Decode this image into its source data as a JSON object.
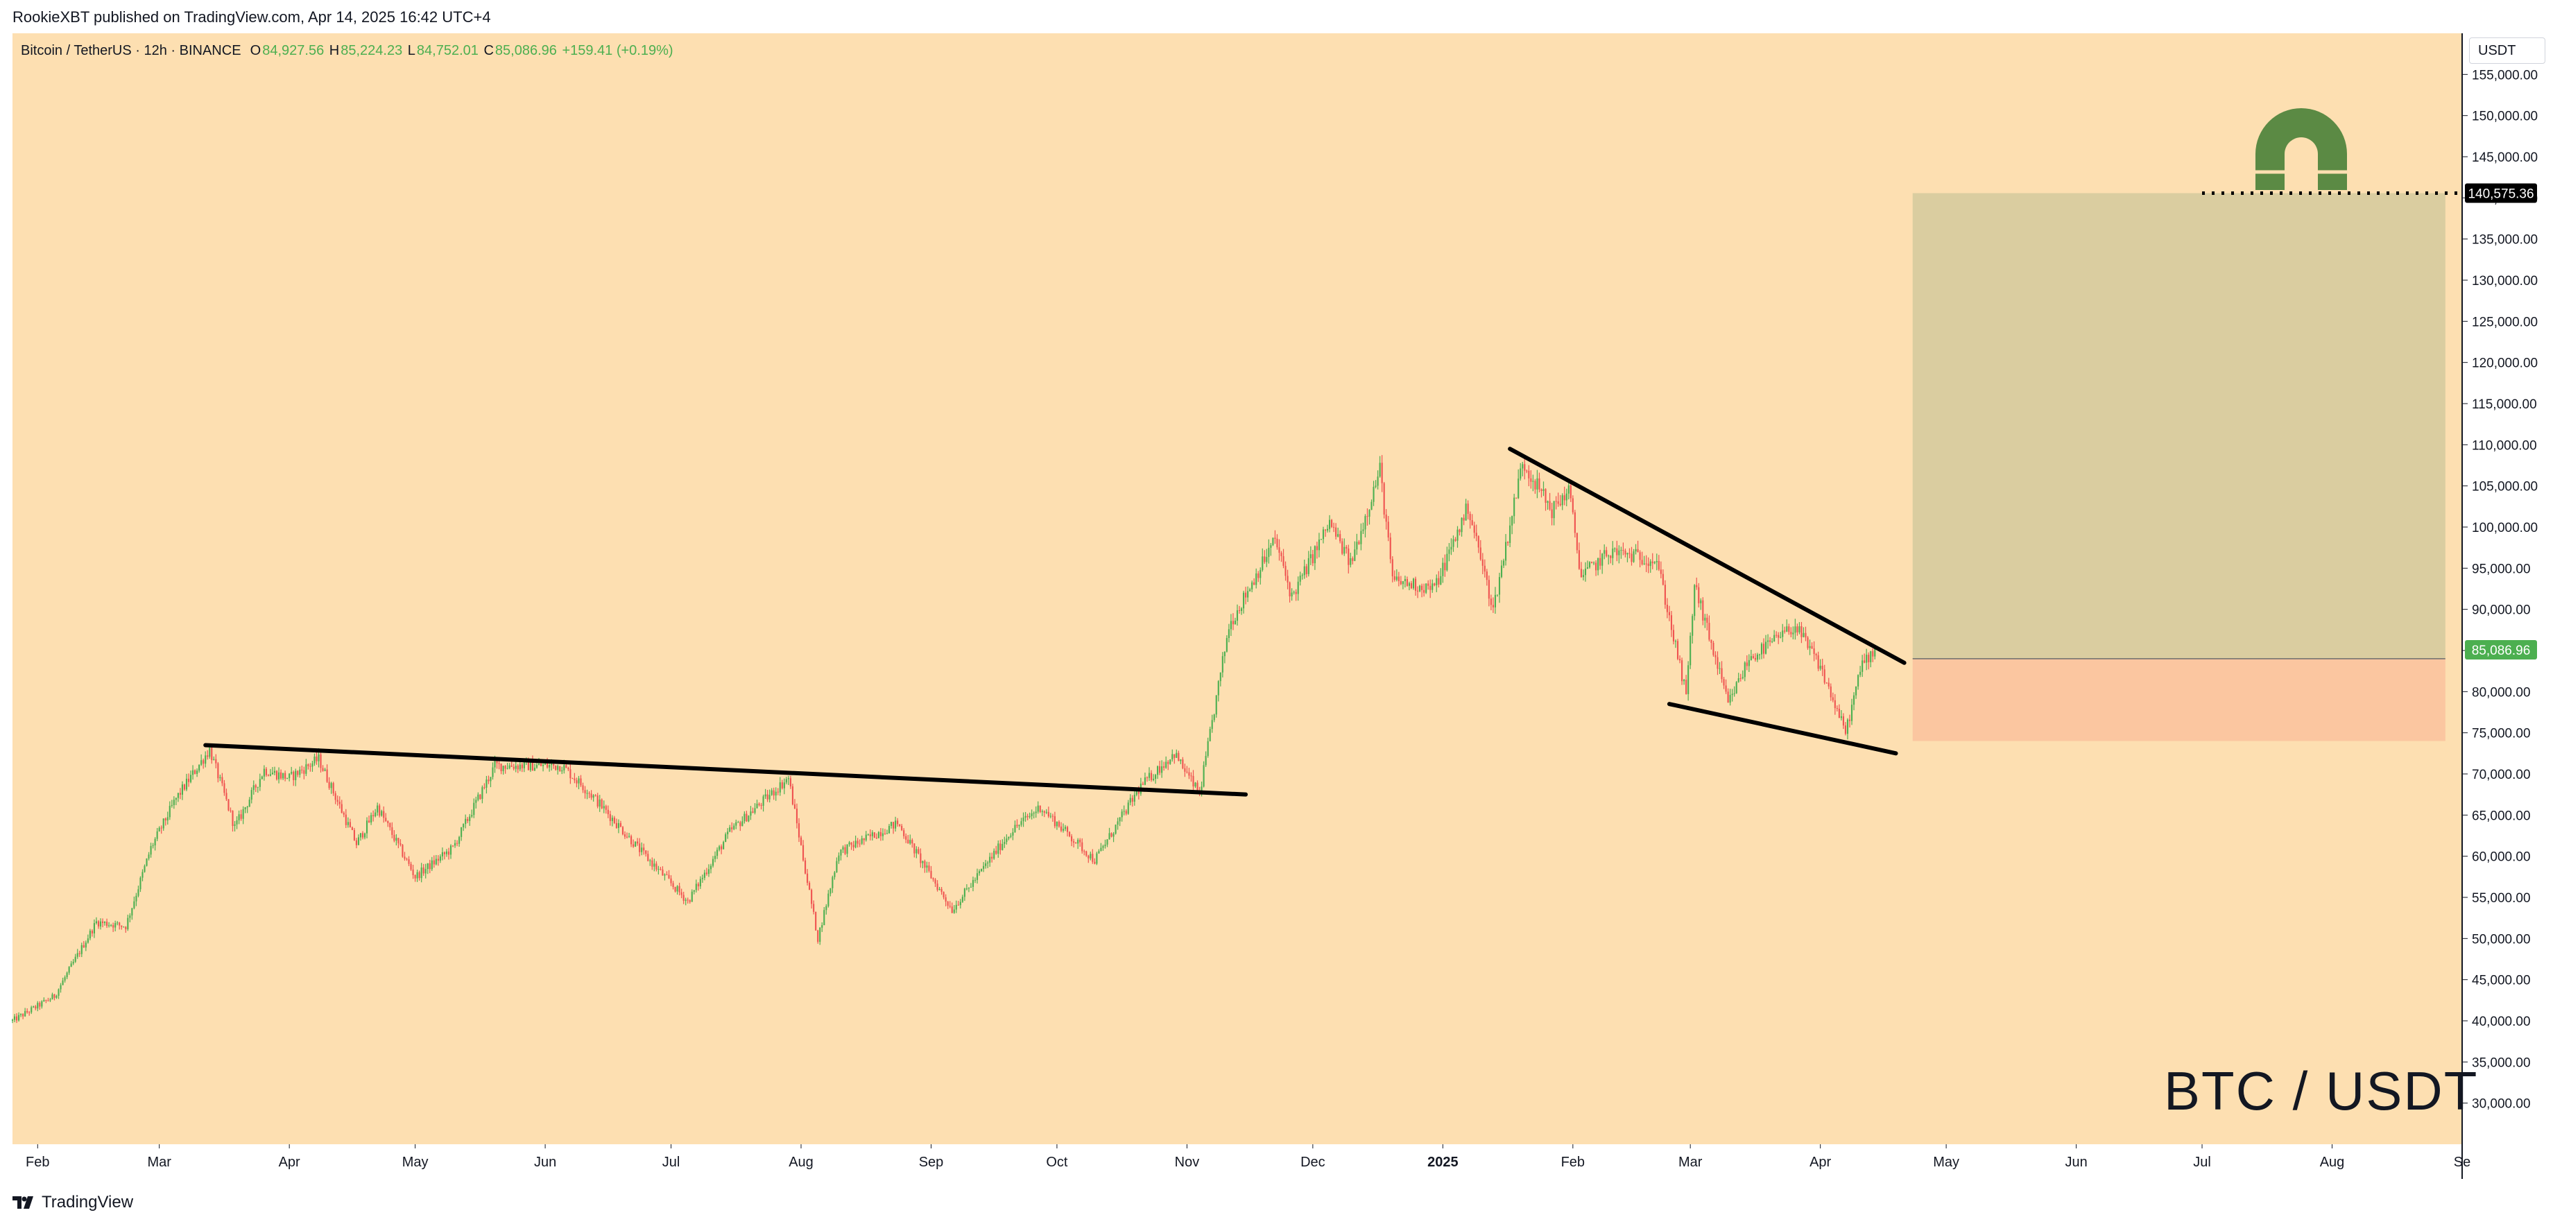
{
  "header": {
    "published": "RookieXBT published on TradingView.com, Apr 14, 2025 16:42 UTC+4"
  },
  "legend": {
    "symbol": "Bitcoin / TetherUS · 12h · BINANCE",
    "o_label": "O",
    "o_value": "84,927.56",
    "h_label": "H",
    "h_value": "85,224.23",
    "l_label": "L",
    "l_value": "84,752.01",
    "c_label": "C",
    "c_value": "85,086.96",
    "change": "+159.41 (+0.19%)"
  },
  "axis_unit": "USDT",
  "watermark": "BTC / USDT",
  "brand": "TradingView",
  "colors": {
    "background": "#fddfb1",
    "up_candle": "#4caf50",
    "down_candle": "#ef5350",
    "target_zone": "#dacda0",
    "stop_zone": "#fbc6a0",
    "icon": "#5b8a44",
    "trendline": "#000000",
    "current_price_label": "#4caf50"
  },
  "icon": "magnet-icon",
  "chart_data": {
    "type": "candlestick",
    "title": "Bitcoin / TetherUS · 12h · BINANCE",
    "timeframe": "12h",
    "y_unit": "USDT",
    "ylim": [
      25000,
      160000
    ],
    "y_ticks": [
      30000,
      35000,
      40000,
      45000,
      50000,
      55000,
      60000,
      65000,
      70000,
      75000,
      80000,
      85000,
      90000,
      95000,
      100000,
      105000,
      110000,
      115000,
      120000,
      125000,
      130000,
      135000,
      140000,
      145000,
      150000,
      155000
    ],
    "y_tick_labels": [
      "30,000.00",
      "35,000.00",
      "40,000.00",
      "45,000.00",
      "50,000.00",
      "55,000.00",
      "60,000.00",
      "65,000.00",
      "70,000.00",
      "75,000.00",
      "80,000.00",
      "85,000.00",
      "90,000.00",
      "95,000.00",
      "100,000.00",
      "105,000.00",
      "110,000.00",
      "115,000.00",
      "120,000.00",
      "125,000.00",
      "130,000.00",
      "135,000.00",
      "140,000.00",
      "145,000.00",
      "150,000.00",
      "155,000.00"
    ],
    "x_range": [
      "2024-01-26",
      "2025-09-01"
    ],
    "x_ticks": [
      "2024-02-01",
      "2024-03-01",
      "2024-04-01",
      "2024-05-01",
      "2024-06-01",
      "2024-07-01",
      "2024-08-01",
      "2024-09-01",
      "2024-10-01",
      "2024-11-01",
      "2024-12-01",
      "2025-01-01",
      "2025-02-01",
      "2025-03-01",
      "2025-04-01",
      "2025-05-01",
      "2025-06-01",
      "2025-07-01",
      "2025-08-01",
      "2025-09-01"
    ],
    "x_tick_labels": [
      "Feb",
      "Mar",
      "Apr",
      "May",
      "Jun",
      "Jul",
      "Aug",
      "Sep",
      "Oct",
      "Nov",
      "Dec",
      "2025",
      "Feb",
      "Mar",
      "Apr",
      "May",
      "Jun",
      "Jul",
      "Aug",
      "Se"
    ],
    "price_path": [
      [
        "2024-01-26",
        40000
      ],
      [
        "2024-02-05",
        43000
      ],
      [
        "2024-02-10",
        47500
      ],
      [
        "2024-02-15",
        52000
      ],
      [
        "2024-02-22",
        51500
      ],
      [
        "2024-02-28",
        61000
      ],
      [
        "2024-03-05",
        67000
      ],
      [
        "2024-03-13",
        73000
      ],
      [
        "2024-03-19",
        63500
      ],
      [
        "2024-03-26",
        70500
      ],
      [
        "2024-04-01",
        69500
      ],
      [
        "2024-04-08",
        71800
      ],
      [
        "2024-04-17",
        61500
      ],
      [
        "2024-04-22",
        66000
      ],
      [
        "2024-05-01",
        57500
      ],
      [
        "2024-05-10",
        61000
      ],
      [
        "2024-05-20",
        71000
      ],
      [
        "2024-06-05",
        71000
      ],
      [
        "2024-06-12",
        67500
      ],
      [
        "2024-06-24",
        60500
      ],
      [
        "2024-07-05",
        54500
      ],
      [
        "2024-07-15",
        63000
      ],
      [
        "2024-07-29",
        69500
      ],
      [
        "2024-08-05",
        50000
      ],
      [
        "2024-08-10",
        60500
      ],
      [
        "2024-08-24",
        64000
      ],
      [
        "2024-09-06",
        53500
      ],
      [
        "2024-09-20",
        63000
      ],
      [
        "2024-09-27",
        66000
      ],
      [
        "2024-10-10",
        59500
      ],
      [
        "2024-10-21",
        68500
      ],
      [
        "2024-10-29",
        72500
      ],
      [
        "2024-11-04",
        67500
      ],
      [
        "2024-11-11",
        88000
      ],
      [
        "2024-11-22",
        98500
      ],
      [
        "2024-11-26",
        91500
      ],
      [
        "2024-12-05",
        100500
      ],
      [
        "2024-12-10",
        95500
      ],
      [
        "2024-12-17",
        107000
      ],
      [
        "2024-12-20",
        93500
      ],
      [
        "2024-12-30",
        92500
      ],
      [
        "2025-01-07",
        102500
      ],
      [
        "2025-01-13",
        90000
      ],
      [
        "2025-01-20",
        108000
      ],
      [
        "2025-01-27",
        102000
      ],
      [
        "2025-01-31",
        104500
      ],
      [
        "2025-02-03",
        94000
      ],
      [
        "2025-02-10",
        97000
      ],
      [
        "2025-02-21",
        96000
      ],
      [
        "2025-02-28",
        79500
      ],
      [
        "2025-03-02",
        93000
      ],
      [
        "2025-03-10",
        78500
      ],
      [
        "2025-03-15",
        84000
      ],
      [
        "2025-03-26",
        88000
      ],
      [
        "2025-04-01",
        83000
      ],
      [
        "2025-04-07",
        75000
      ],
      [
        "2025-04-11",
        83500
      ],
      [
        "2025-04-14",
        85087
      ]
    ],
    "last_price": 85086.96,
    "last_price_label": "85,086.96",
    "target_price": 140575.36,
    "target_price_label": "140,575.36",
    "trendlines": [
      {
        "name": "resistance-2024",
        "from": [
          "2024-03-12",
          73500
        ],
        "to": [
          "2024-11-15",
          67500
        ]
      },
      {
        "name": "wedge-upper",
        "from": [
          "2025-01-17",
          109500
        ],
        "to": [
          "2025-04-21",
          83500
        ]
      },
      {
        "name": "wedge-lower",
        "from": [
          "2025-02-24",
          78500
        ],
        "to": [
          "2025-04-19",
          72500
        ]
      }
    ],
    "long_position": {
      "start": "2025-04-23",
      "end": "2025-08-28",
      "entry": 84000,
      "target": 140575.36,
      "stop": 74000
    },
    "grid": false,
    "legend_position": "top-left"
  }
}
